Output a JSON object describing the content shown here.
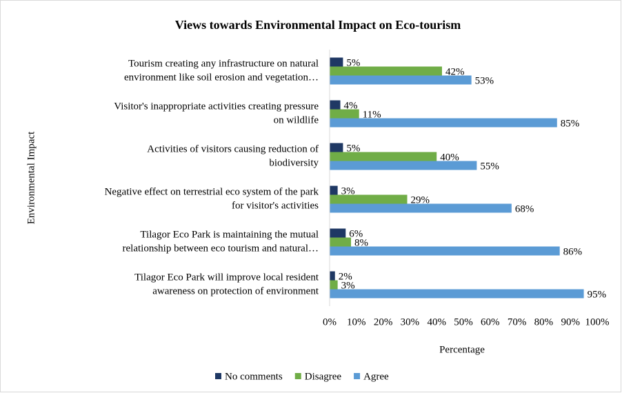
{
  "chart_data": {
    "type": "hbar",
    "title": "Views towards Environmental Impact on Eco-tourism",
    "x_label": "Percentage",
    "y_label": "Environmental Impact",
    "categories": [
      [
        "Tourism creating any infrastructure on natural",
        "environment like soil erosion and vegetation…"
      ],
      [
        "Visitor's inappropriate activities creating pressure",
        "on wildlife"
      ],
      [
        "Activities of visitors causing reduction of",
        "biodiversity"
      ],
      [
        "Negative effect on terrestrial eco system of the park",
        "for visitor's activities"
      ],
      [
        "Tilagor Eco Park is maintaining the mutual",
        "relationship between eco tourism and natural…"
      ],
      [
        "Tilagor Eco Park will improve local resident",
        "awareness on protection of environment"
      ]
    ],
    "series": [
      {
        "name": "No comments",
        "color": "#1f3864",
        "values": [
          5,
          4,
          5,
          3,
          6,
          2
        ],
        "value_labels": [
          "5%",
          "4%",
          "5%",
          "3%",
          "6%",
          "2%"
        ]
      },
      {
        "name": "Disagree",
        "color": "#70ad47",
        "values": [
          42,
          11,
          40,
          29,
          8,
          3
        ],
        "value_labels": [
          "42%",
          "11%",
          "40%",
          "29%",
          "8%",
          "3%"
        ]
      },
      {
        "name": "Agree",
        "color": "#5b9bd5",
        "values": [
          53,
          85,
          55,
          68,
          86,
          95
        ],
        "value_labels": [
          "53%",
          "85%",
          "55%",
          "68%",
          "86%",
          "95%"
        ]
      }
    ],
    "xlim": [
      0,
      100
    ],
    "xticks": [
      {
        "value": 0,
        "label": "0%"
      },
      {
        "value": 10,
        "label": "10%"
      },
      {
        "value": 20,
        "label": "20%"
      },
      {
        "value": 30,
        "label": "30%"
      },
      {
        "value": 40,
        "label": "40%"
      },
      {
        "value": 50,
        "label": "50%"
      },
      {
        "value": 60,
        "label": "60%"
      },
      {
        "value": 70,
        "label": "70%"
      },
      {
        "value": 80,
        "label": "80%"
      },
      {
        "value": 90,
        "label": "90%"
      },
      {
        "value": 100,
        "label": "100%"
      }
    ],
    "grid": false,
    "legend": "bottom"
  }
}
